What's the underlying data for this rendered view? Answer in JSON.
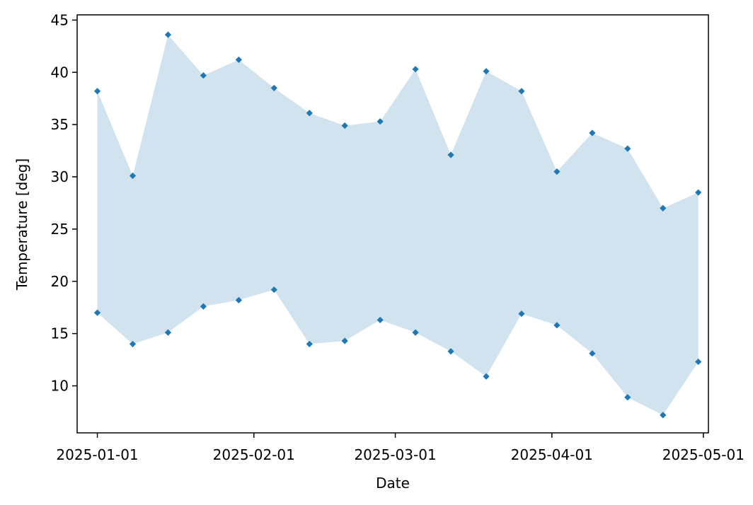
{
  "chart_data": {
    "type": "area",
    "title": "",
    "xlabel": "Date",
    "ylabel": "Temperature [deg]",
    "xlim": [
      "2024-12-28",
      "2025-05-02"
    ],
    "ylim": [
      5.5,
      45.5
    ],
    "x_ticks": [
      "2025-01-01",
      "2025-02-01",
      "2025-03-01",
      "2025-04-01",
      "2025-05-01"
    ],
    "y_ticks": [
      10,
      15,
      20,
      25,
      30,
      35,
      40,
      45
    ],
    "grid": false,
    "legend": "none",
    "dates": [
      "2025-01-01",
      "2025-01-08",
      "2025-01-15",
      "2025-01-22",
      "2025-01-29",
      "2025-02-05",
      "2025-02-12",
      "2025-02-19",
      "2025-02-26",
      "2025-03-05",
      "2025-03-12",
      "2025-03-19",
      "2025-03-26",
      "2025-04-02",
      "2025-04-09",
      "2025-04-16",
      "2025-04-23",
      "2025-04-30"
    ],
    "series": [
      {
        "values": [
          38.2,
          30.1,
          43.6,
          39.7,
          41.2,
          38.5,
          36.1,
          34.9,
          35.3,
          40.3,
          32.1,
          40.1,
          38.2,
          30.5,
          34.2,
          32.7,
          27.0,
          28.5
        ]
      },
      {
        "values": [
          17.0,
          14.0,
          15.1,
          17.6,
          18.2,
          19.2,
          14.0,
          14.3,
          16.3,
          15.1,
          13.3,
          10.9,
          16.9,
          15.8,
          13.1,
          8.9,
          7.2,
          12.3
        ]
      }
    ],
    "fill_color": "#d2e3f0",
    "marker_color": "#1f77b4"
  }
}
